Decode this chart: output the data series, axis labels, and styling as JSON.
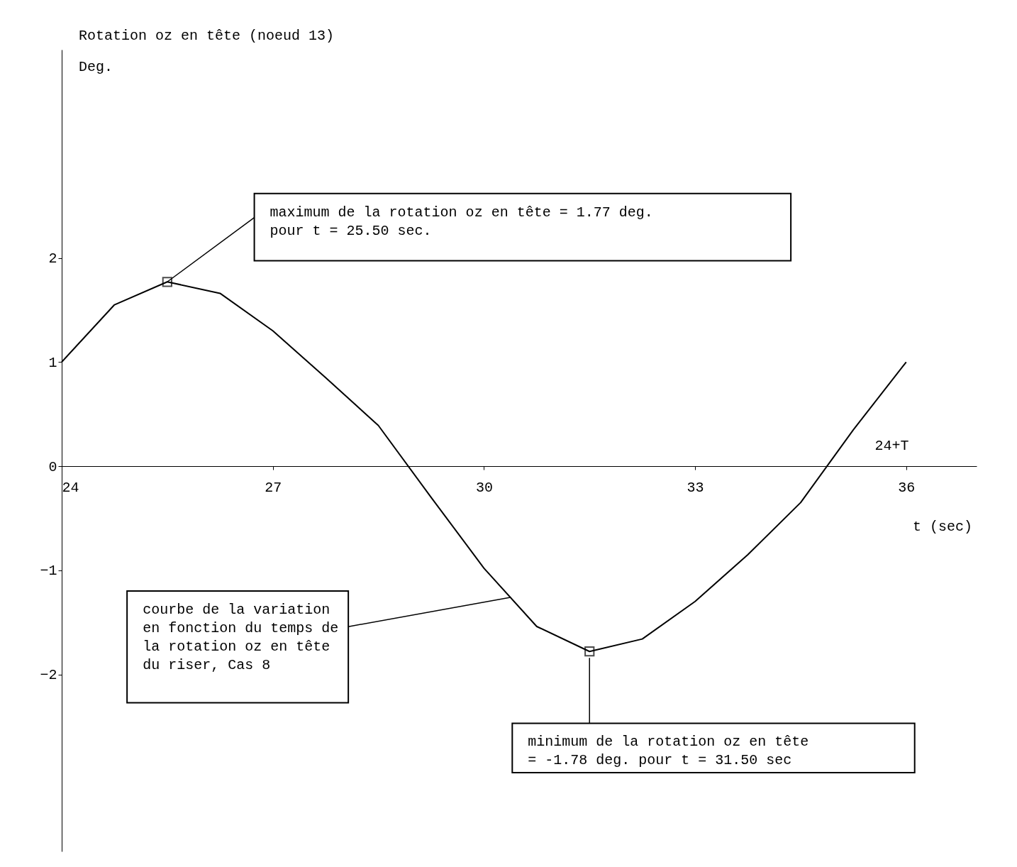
{
  "chart_data": {
    "type": "line",
    "ylabel": "Rotation oz en tête (noeud 13)\nDeg.",
    "xlabel": "t (sec)",
    "xlim": [
      24,
      37
    ],
    "ylim": [
      -3.7,
      4.0
    ],
    "xticks": [
      24,
      27,
      30,
      33,
      36
    ],
    "yticks": [
      -2,
      -1,
      0,
      1,
      2
    ],
    "grid": false,
    "series": [
      {
        "color": "#000000",
        "marker": "none",
        "line_style": "solid",
        "x": [
          24,
          24.75,
          25.5,
          26.25,
          27,
          27.75,
          28.5,
          29.25,
          30,
          30.75,
          31.5,
          32.25,
          33,
          33.75,
          34.5,
          35.25,
          36
        ],
        "values": [
          1.0,
          1.55,
          1.77,
          1.66,
          1.3,
          0.85,
          0.39,
          -0.3,
          -0.98,
          -1.54,
          -1.78,
          -1.66,
          -1.3,
          -0.85,
          -0.35,
          0.35,
          1.0
        ]
      },
      {
        "type": "scatter",
        "color": "#000000",
        "marker": "square",
        "x": [
          25.5,
          31.5
        ],
        "values": [
          1.77,
          -1.78
        ]
      }
    ],
    "annotations": [
      {
        "text": "maximum de la rotation oz en tête = 1.77 deg.\npour t = 25.50 sec.",
        "x": 25.5,
        "y": 1.77
      },
      {
        "text": "courbe de la variation\nen fonction du temps de\nla rotation oz en tête\ndu riser, Cas 8",
        "x": 30.375,
        "y": -1.26
      },
      {
        "text": "minimum de la rotation oz en tête\n= -1.78 deg. pour t = 31.50 sec",
        "x": 31.5,
        "y": -1.78
      },
      "24+T"
    ]
  }
}
